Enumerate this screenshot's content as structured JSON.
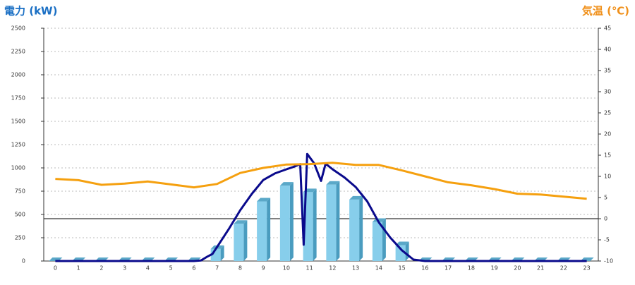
{
  "chart_data": {
    "type": "bar",
    "y_label": "電力 (kW)",
    "y2_label": "気温 (℃)",
    "categories": [
      "0",
      "1",
      "2",
      "3",
      "4",
      "5",
      "6",
      "7",
      "8",
      "9",
      "10",
      "11",
      "12",
      "13",
      "14",
      "15",
      "16",
      "17",
      "18",
      "19",
      "20",
      "21",
      "22",
      "23"
    ],
    "ylim": [
      0,
      2500
    ],
    "yticks": [
      0,
      250,
      500,
      750,
      1000,
      1250,
      1500,
      1750,
      2000,
      2250,
      2500
    ],
    "y2lim": [
      -10,
      45
    ],
    "y2ticks": [
      -10,
      -5,
      0,
      5,
      10,
      15,
      20,
      25,
      30,
      35,
      40,
      45
    ],
    "grid": true,
    "series": [
      {
        "type": "bar",
        "color": "#87ceeb",
        "values": [
          0,
          0,
          0,
          0,
          0,
          0,
          0,
          130,
          400,
          640,
          810,
          740,
          820,
          660,
          420,
          170,
          0,
          0,
          0,
          0,
          0,
          0,
          0,
          0
        ]
      },
      {
        "type": "line",
        "color": "#0a0a8c",
        "x": [
          0,
          6,
          6.3,
          6.6,
          6.8,
          7,
          7.5,
          8,
          8.5,
          9,
          9.5,
          10,
          10.3,
          10.6,
          10.75,
          10.9,
          11.2,
          11.5,
          11.7,
          12,
          12.5,
          13,
          13.5,
          14,
          14.5,
          15,
          15.5,
          16,
          23
        ],
        "values": [
          0,
          0,
          5,
          50,
          76,
          150,
          340,
          545,
          720,
          870,
          940,
          985,
          1010,
          1040,
          175,
          1150,
          1050,
          860,
          1045,
          985,
          900,
          795,
          640,
          415,
          250,
          115,
          15,
          0,
          0
        ]
      },
      {
        "type": "line",
        "axis": "y2",
        "color": "#f5a00f",
        "values": [
          9.4,
          9.1,
          8.0,
          8.3,
          8.8,
          8.1,
          7.4,
          8.2,
          10.8,
          12.0,
          12.8,
          12.9,
          13.2,
          12.7,
          12.7,
          11.4,
          10.0,
          8.6,
          7.9,
          7.0,
          5.9,
          5.7,
          5.2,
          4.7
        ]
      }
    ]
  }
}
